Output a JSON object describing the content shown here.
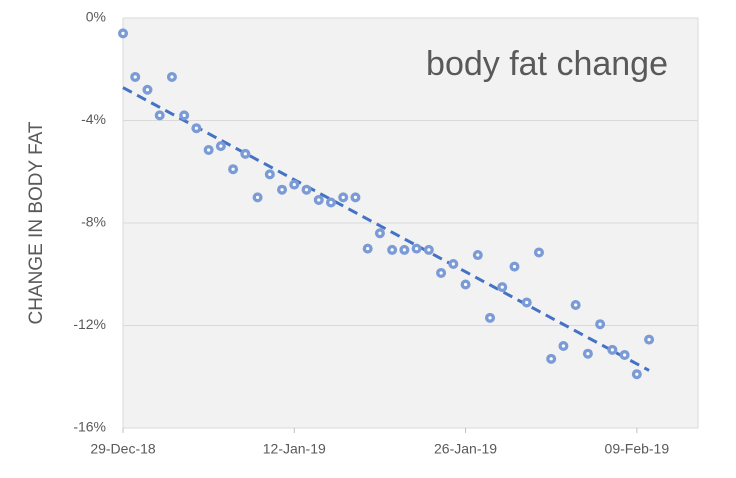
{
  "chart_data": {
    "type": "scatter",
    "title": "body fat change",
    "y_label": "CHANGE IN BODY FAT",
    "x": [
      "2018-12-29",
      "2018-12-30",
      "2018-12-31",
      "2019-01-01",
      "2019-01-02",
      "2019-01-03",
      "2019-01-04",
      "2019-01-05",
      "2019-01-06",
      "2019-01-07",
      "2019-01-08",
      "2019-01-09",
      "2019-01-10",
      "2019-01-11",
      "2019-01-12",
      "2019-01-13",
      "2019-01-14",
      "2019-01-15",
      "2019-01-16",
      "2019-01-17",
      "2019-01-18",
      "2019-01-19",
      "2019-01-20",
      "2019-01-21",
      "2019-01-22",
      "2019-01-23",
      "2019-01-24",
      "2019-01-25",
      "2019-01-26",
      "2019-01-27",
      "2019-01-28",
      "2019-01-29",
      "2019-01-30",
      "2019-01-31",
      "2019-02-01",
      "2019-02-02",
      "2019-02-03",
      "2019-02-04",
      "2019-02-05",
      "2019-02-06",
      "2019-02-07",
      "2019-02-08",
      "2019-02-09",
      "2019-02-10"
    ],
    "values": [
      -0.6,
      -2.3,
      -2.8,
      -3.8,
      -2.3,
      -3.8,
      -4.3,
      -5.15,
      -5.0,
      -5.9,
      -5.3,
      -7.0,
      -6.1,
      -6.7,
      -6.5,
      -6.7,
      -7.1,
      -7.2,
      -7.0,
      -7.0,
      -9.0,
      -8.4,
      -9.05,
      -9.05,
      -9.0,
      -9.05,
      -9.95,
      -9.6,
      -10.4,
      -9.25,
      -11.7,
      -10.5,
      -9.7,
      -11.1,
      -9.15,
      -13.3,
      -12.8,
      -11.2,
      -13.1,
      -11.95,
      -12.95,
      -13.15,
      -13.9,
      -12.55
    ],
    "color": "#7b9bd6",
    "trendline": true,
    "trendline_color": "#4472c4",
    "xlim": [
      "2018-12-29",
      "2019-02-14"
    ],
    "xticks": [
      {
        "value": "2018-12-29",
        "label": "29-Dec-18"
      },
      {
        "value": "2019-01-12",
        "label": "12-Jan-19"
      },
      {
        "value": "2019-01-26",
        "label": "26-Jan-19"
      },
      {
        "value": "2019-02-09",
        "label": "09-Feb-19"
      }
    ],
    "ylim": [
      -16,
      0
    ],
    "yticks": [
      {
        "value": 0,
        "label": "0%"
      },
      {
        "value": -4,
        "label": "-4%"
      },
      {
        "value": -8,
        "label": "-8%"
      },
      {
        "value": -12,
        "label": "-12%"
      },
      {
        "value": -16,
        "label": "-16%"
      }
    ],
    "grid": true
  }
}
